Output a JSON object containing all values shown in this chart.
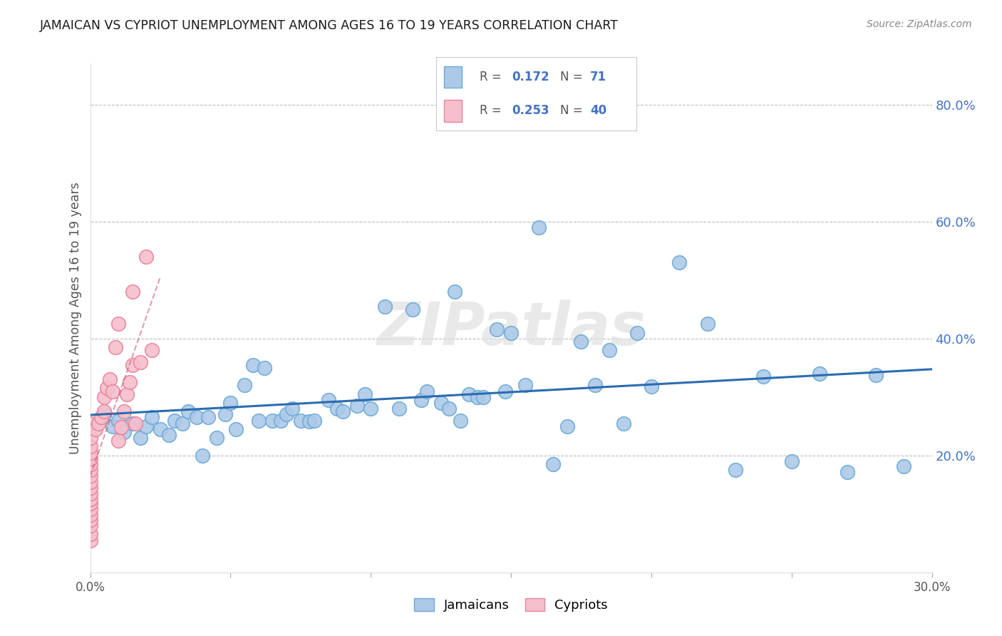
{
  "title": "JAMAICAN VS CYPRIOT UNEMPLOYMENT AMONG AGES 16 TO 19 YEARS CORRELATION CHART",
  "source": "Source: ZipAtlas.com",
  "ylabel": "Unemployment Among Ages 16 to 19 years",
  "xlim": [
    0.0,
    0.3
  ],
  "ylim": [
    0.0,
    0.87
  ],
  "xticks": [
    0.0,
    0.05,
    0.1,
    0.15,
    0.2,
    0.25,
    0.3
  ],
  "xtick_labels": [
    "0.0%",
    "",
    "",
    "",
    "",
    "",
    "30.0%"
  ],
  "yticks_right": [
    0.2,
    0.4,
    0.6,
    0.8
  ],
  "ytick_labels_right": [
    "20.0%",
    "40.0%",
    "60.0%",
    "80.0%"
  ],
  "legend_color": "#4472c4",
  "blue_face": "#adc9e8",
  "blue_edge": "#6aaad4",
  "pink_face": "#f5bfcc",
  "pink_edge": "#e8849a",
  "blue_line": "#2b6cb0",
  "pink_line": "#d05878",
  "watermark": "ZIPatlas",
  "jamaicans_x": [
    0.005,
    0.008,
    0.01,
    0.012,
    0.015,
    0.018,
    0.02,
    0.022,
    0.025,
    0.028,
    0.03,
    0.033,
    0.035,
    0.038,
    0.04,
    0.042,
    0.045,
    0.048,
    0.05,
    0.052,
    0.055,
    0.058,
    0.06,
    0.062,
    0.065,
    0.068,
    0.07,
    0.072,
    0.075,
    0.078,
    0.08,
    0.085,
    0.088,
    0.09,
    0.095,
    0.098,
    0.1,
    0.105,
    0.11,
    0.115,
    0.118,
    0.12,
    0.125,
    0.128,
    0.13,
    0.132,
    0.135,
    0.138,
    0.14,
    0.145,
    0.148,
    0.15,
    0.155,
    0.16,
    0.165,
    0.17,
    0.175,
    0.18,
    0.185,
    0.19,
    0.195,
    0.2,
    0.21,
    0.22,
    0.23,
    0.24,
    0.25,
    0.26,
    0.27,
    0.28,
    0.29
  ],
  "jamaicans_y": [
    0.27,
    0.25,
    0.26,
    0.24,
    0.255,
    0.23,
    0.25,
    0.265,
    0.245,
    0.235,
    0.26,
    0.255,
    0.275,
    0.265,
    0.2,
    0.265,
    0.23,
    0.27,
    0.29,
    0.245,
    0.32,
    0.355,
    0.26,
    0.35,
    0.26,
    0.26,
    0.27,
    0.28,
    0.26,
    0.258,
    0.26,
    0.295,
    0.28,
    0.275,
    0.285,
    0.305,
    0.28,
    0.455,
    0.28,
    0.45,
    0.295,
    0.31,
    0.29,
    0.28,
    0.48,
    0.26,
    0.305,
    0.3,
    0.3,
    0.415,
    0.31,
    0.41,
    0.32,
    0.59,
    0.185,
    0.25,
    0.395,
    0.32,
    0.38,
    0.255,
    0.41,
    0.318,
    0.53,
    0.425,
    0.175,
    0.335,
    0.19,
    0.34,
    0.172,
    0.338,
    0.182
  ],
  "cypriots_x": [
    0.0,
    0.0,
    0.0,
    0.0,
    0.0,
    0.0,
    0.0,
    0.0,
    0.0,
    0.0,
    0.0,
    0.0,
    0.0,
    0.0,
    0.0,
    0.0,
    0.0,
    0.0,
    0.0,
    0.002,
    0.003,
    0.004,
    0.005,
    0.005,
    0.006,
    0.007,
    0.008,
    0.009,
    0.01,
    0.01,
    0.011,
    0.012,
    0.013,
    0.014,
    0.015,
    0.015,
    0.016,
    0.018,
    0.02,
    0.022
  ],
  "cypriots_y": [
    0.055,
    0.065,
    0.08,
    0.09,
    0.098,
    0.108,
    0.118,
    0.125,
    0.135,
    0.145,
    0.155,
    0.165,
    0.175,
    0.185,
    0.195,
    0.205,
    0.215,
    0.23,
    0.255,
    0.245,
    0.255,
    0.265,
    0.275,
    0.3,
    0.315,
    0.33,
    0.31,
    0.385,
    0.425,
    0.225,
    0.248,
    0.275,
    0.305,
    0.325,
    0.355,
    0.48,
    0.255,
    0.36,
    0.54,
    0.38
  ]
}
